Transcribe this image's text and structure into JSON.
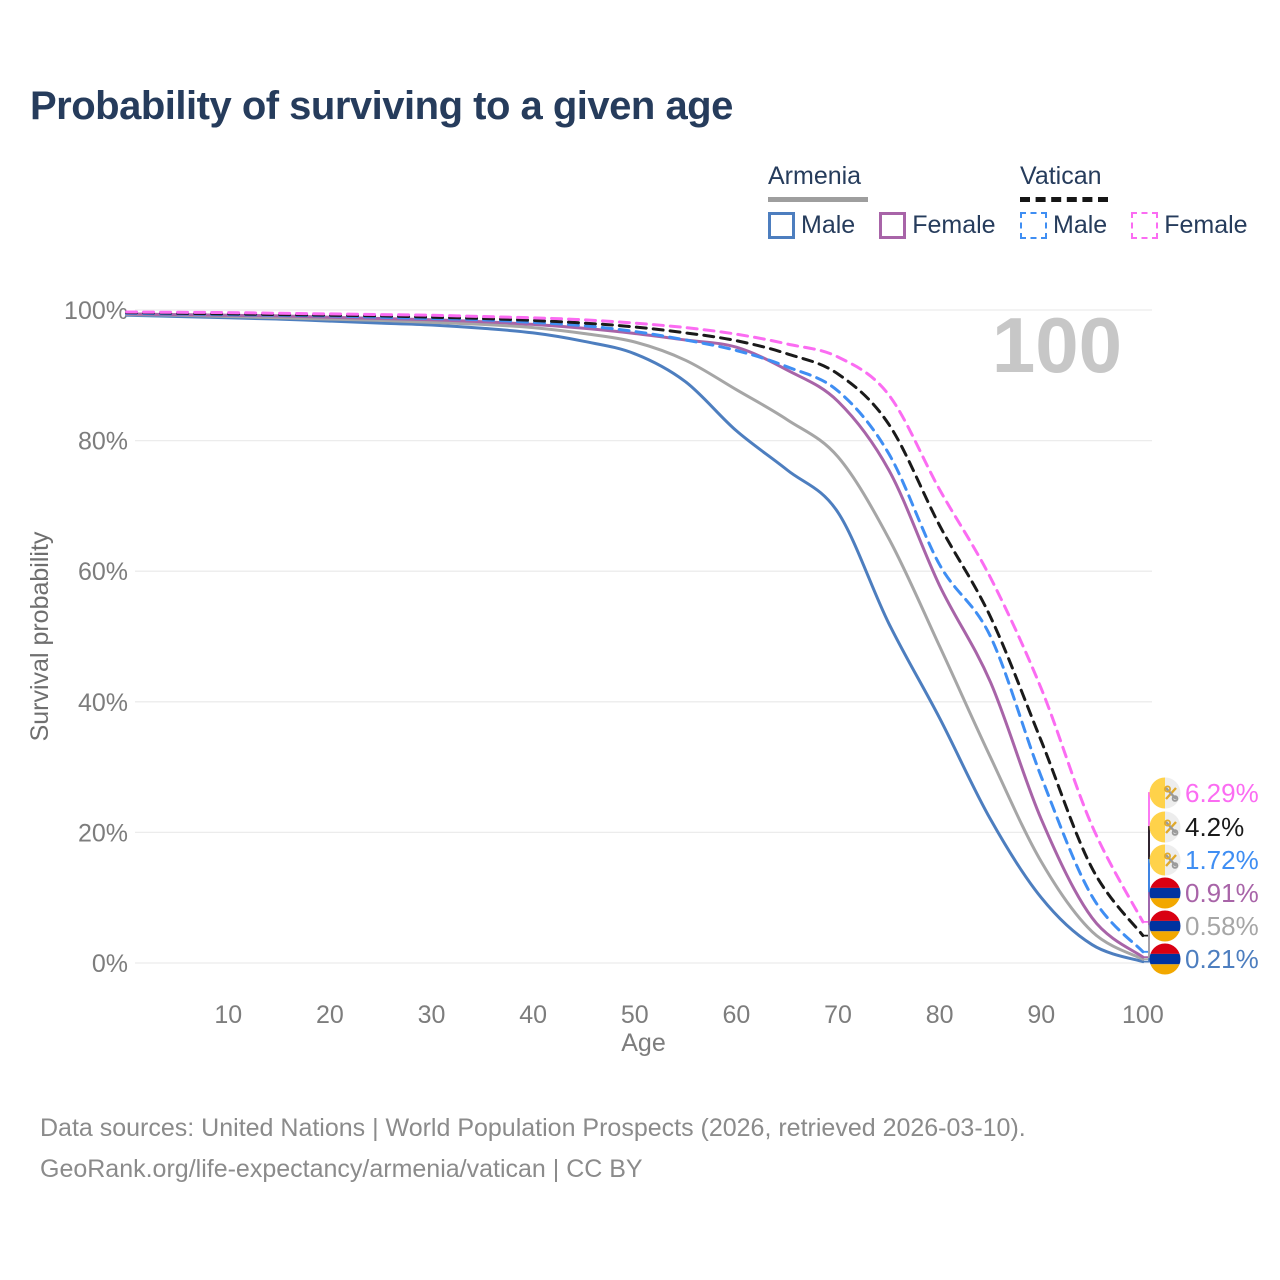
{
  "title": "Probability of surviving to a given age",
  "watermark": "100",
  "legend": {
    "groups": [
      {
        "label": "Armenia",
        "line_style": "solid",
        "underline_color": "#9e9e9e",
        "items": [
          {
            "label": "Male",
            "color": "#4d7ebf"
          },
          {
            "label": "Female",
            "color": "#a864a8"
          }
        ]
      },
      {
        "label": "Vatican",
        "line_style": "dashed",
        "underline_color": "#161616",
        "items": [
          {
            "label": "Male",
            "color": "#3f8ef3"
          },
          {
            "label": "Female",
            "color": "#fb6cf2"
          }
        ]
      }
    ]
  },
  "chart_data": {
    "type": "line",
    "title": "Probability of surviving to a given age",
    "xlabel": "Age",
    "ylabel": "Survival probability",
    "x_range": [
      0,
      100
    ],
    "y_range_pct": [
      0,
      100
    ],
    "x_ticks": [
      10,
      20,
      30,
      40,
      50,
      60,
      70,
      80,
      90,
      100
    ],
    "y_ticks_pct": [
      0,
      20,
      40,
      60,
      80,
      100
    ],
    "y_tick_suffix": "%",
    "grid": "horizontal",
    "legend_position": "top-right",
    "annotation": "100",
    "ages": [
      0,
      5,
      10,
      15,
      20,
      25,
      30,
      35,
      40,
      45,
      50,
      55,
      60,
      65,
      70,
      75,
      80,
      85,
      90,
      95,
      100
    ],
    "series": [
      {
        "name": "Armenia Male",
        "country": "Armenia",
        "sex": "Male",
        "color": "#4d7ebf",
        "dashed": false,
        "flag": "armenia",
        "end_label": "0.21%",
        "end_value_pct": 0.21,
        "values_pct": [
          99.2,
          99.0,
          98.8,
          98.6,
          98.3,
          98.0,
          97.7,
          97.2,
          96.5,
          95.2,
          93.3,
          89.0,
          81.5,
          75.5,
          69.0,
          52.0,
          37.5,
          22.0,
          10.0,
          2.8,
          0.21
        ]
      },
      {
        "name": "Armenia Both sexes",
        "country": "Armenia",
        "sex": "Both",
        "color": "#a6a6a6",
        "dashed": false,
        "flag": "armenia",
        "end_label": "0.58%",
        "end_value_pct": 0.58,
        "values_pct": [
          99.3,
          99.2,
          99.0,
          98.8,
          98.6,
          98.4,
          98.1,
          97.8,
          97.3,
          96.4,
          95.1,
          92.3,
          87.8,
          83.2,
          77.5,
          65.0,
          48.5,
          31.5,
          15.5,
          4.8,
          0.58
        ]
      },
      {
        "name": "Armenia Female",
        "country": "Armenia",
        "sex": "Female",
        "color": "#a864a8",
        "dashed": false,
        "flag": "armenia",
        "end_label": "0.91%",
        "end_value_pct": 0.91,
        "values_pct": [
          99.4,
          99.3,
          99.2,
          99.1,
          98.9,
          98.7,
          98.5,
          98.2,
          97.8,
          97.2,
          96.4,
          95.4,
          94.3,
          90.8,
          86.0,
          75.5,
          57.8,
          43.0,
          22.0,
          6.9,
          0.91
        ]
      },
      {
        "name": "Vatican Male",
        "country": "Vatican",
        "sex": "Male",
        "color": "#3f8ef3",
        "dashed": true,
        "flag": "vatican",
        "end_label": "1.72%",
        "end_value_pct": 1.72,
        "values_pct": [
          99.5,
          99.4,
          99.3,
          99.2,
          99.1,
          98.9,
          98.7,
          98.5,
          98.1,
          97.6,
          96.7,
          95.4,
          93.8,
          91.3,
          87.6,
          78.0,
          61.0,
          50.0,
          28.5,
          10.2,
          1.72
        ]
      },
      {
        "name": "Vatican Both sexes",
        "country": "Vatican",
        "sex": "Both",
        "color": "#1a1a1a",
        "dashed": true,
        "flag": "vatican",
        "end_label": "4.2%",
        "end_value_pct": 4.2,
        "values_pct": [
          99.6,
          99.5,
          99.4,
          99.3,
          99.2,
          99.1,
          98.9,
          98.7,
          98.4,
          98.0,
          97.4,
          96.5,
          95.3,
          93.3,
          90.2,
          82.5,
          67.0,
          53.0,
          34.0,
          14.5,
          4.2
        ]
      },
      {
        "name": "Vatican Female",
        "country": "Vatican",
        "sex": "Female",
        "color": "#fb6cf2",
        "dashed": true,
        "flag": "vatican",
        "end_label": "6.29%",
        "end_value_pct": 6.29,
        "values_pct": [
          99.7,
          99.65,
          99.6,
          99.5,
          99.4,
          99.3,
          99.2,
          99.0,
          98.8,
          98.5,
          98.0,
          97.3,
          96.3,
          94.8,
          92.8,
          87.0,
          72.5,
          59.0,
          42.0,
          21.0,
          6.29
        ]
      }
    ],
    "flag_colors": {
      "armenia": {
        "red": "#d90012",
        "blue": "#0033a0",
        "orange": "#f2a800"
      },
      "vatican": {
        "yellow": "#ffd24a",
        "white": "#ededed",
        "key_gold": "#e0a92c",
        "key_silver": "#9a9a9a"
      }
    }
  },
  "footer": {
    "line1": "Data sources: United Nations | World Population Prospects (2026, retrieved 2026-03-10).",
    "line2": "GeoRank.org/life-expectancy/armenia/vatican | CC BY"
  }
}
